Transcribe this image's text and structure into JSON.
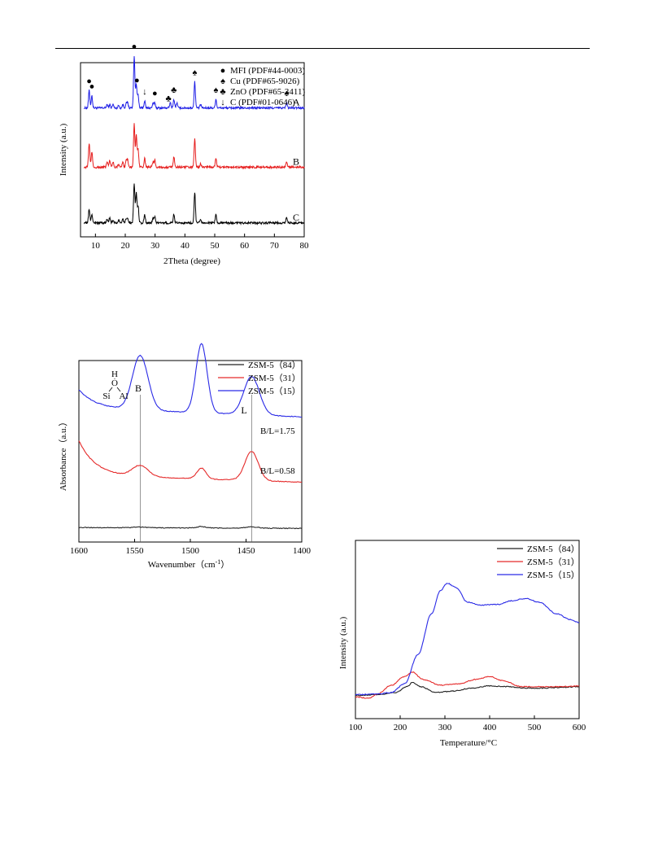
{
  "colors": {
    "A": "#1f1fe6",
    "B": "#e61e1e",
    "C": "#000000",
    "s84": "#222222",
    "s31": "#e52a2a",
    "s15": "#2a2ae6"
  },
  "chart_data": [
    {
      "type": "line",
      "title": "",
      "xlabel": "2Theta (degree)",
      "ylabel": "Intensity (a.u.)",
      "xlim": [
        5,
        80
      ],
      "xticks": [
        "10",
        "20",
        "30",
        "40",
        "50",
        "60",
        "70",
        "80"
      ],
      "legend": [
        {
          "symbol": "●",
          "label": "MFI (PDF#44-0003)"
        },
        {
          "symbol": "♠",
          "label": "Cu   (PDF#65-9026)"
        },
        {
          "symbol": "♣",
          "label": "ZnO (PDF#65-3411)"
        },
        {
          "symbol": "↓",
          "label": "C   (PDF#01-0646)"
        }
      ],
      "series": [
        {
          "name": "A",
          "baseline": 0.74,
          "peaks": [
            [
              7.9,
              0.1
            ],
            [
              8.8,
              0.07
            ],
            [
              13.9,
              0.02
            ],
            [
              14.8,
              0.02
            ],
            [
              15.9,
              0.02
            ],
            [
              17.8,
              0.015
            ],
            [
              19.2,
              0.02
            ],
            [
              20.3,
              0.025
            ],
            [
              20.8,
              0.03
            ],
            [
              23.0,
              0.3
            ],
            [
              23.7,
              0.14
            ],
            [
              24.3,
              0.07
            ],
            [
              26.5,
              0.04
            ],
            [
              29.3,
              0.025
            ],
            [
              29.9,
              0.03
            ],
            [
              35.1,
              0.03
            ],
            [
              36.3,
              0.05
            ],
            [
              37.3,
              0.03
            ],
            [
              43.3,
              0.15
            ],
            [
              45.3,
              0.02
            ],
            [
              50.4,
              0.05
            ],
            [
              74.1,
              0.03
            ]
          ]
        },
        {
          "name": "B",
          "baseline": 0.4,
          "peaks": [
            [
              7.9,
              0.14
            ],
            [
              8.8,
              0.09
            ],
            [
              13.9,
              0.03
            ],
            [
              14.8,
              0.04
            ],
            [
              15.9,
              0.03
            ],
            [
              17.8,
              0.02
            ],
            [
              19.2,
              0.03
            ],
            [
              20.3,
              0.035
            ],
            [
              20.8,
              0.04
            ],
            [
              23.0,
              0.25
            ],
            [
              23.7,
              0.18
            ],
            [
              24.3,
              0.1
            ],
            [
              26.5,
              0.05
            ],
            [
              29.3,
              0.03
            ],
            [
              29.9,
              0.04
            ],
            [
              36.3,
              0.06
            ],
            [
              43.3,
              0.16
            ],
            [
              45.3,
              0.02
            ],
            [
              50.4,
              0.05
            ],
            [
              74.1,
              0.03
            ]
          ]
        },
        {
          "name": "C",
          "baseline": 0.08,
          "peaks": [
            [
              7.9,
              0.08
            ],
            [
              8.8,
              0.05
            ],
            [
              13.9,
              0.02
            ],
            [
              14.8,
              0.03
            ],
            [
              15.9,
              0.02
            ],
            [
              17.8,
              0.015
            ],
            [
              19.2,
              0.02
            ],
            [
              20.3,
              0.025
            ],
            [
              20.8,
              0.03
            ],
            [
              23.0,
              0.23
            ],
            [
              23.7,
              0.17
            ],
            [
              24.3,
              0.1
            ],
            [
              26.5,
              0.05
            ],
            [
              29.3,
              0.03
            ],
            [
              29.9,
              0.035
            ],
            [
              36.3,
              0.05
            ],
            [
              43.3,
              0.18
            ],
            [
              45.3,
              0.02
            ],
            [
              50.4,
              0.05
            ],
            [
              74.1,
              0.035
            ]
          ]
        }
      ],
      "markers": [
        {
          "symbol": "●",
          "x": 7.9
        },
        {
          "symbol": "●",
          "x": 8.8
        },
        {
          "symbol": "●",
          "x": 23.0
        },
        {
          "symbol": "●",
          "x": 23.9
        },
        {
          "symbol": "↓",
          "x": 26.5
        },
        {
          "symbol": "●",
          "x": 29.9
        },
        {
          "symbol": "♣",
          "x": 34.5
        },
        {
          "symbol": "♣",
          "x": 36.3
        },
        {
          "symbol": "♠",
          "x": 43.3
        },
        {
          "symbol": "♠",
          "x": 50.4
        },
        {
          "symbol": "♠",
          "x": 74.1
        }
      ],
      "series_labels": [
        "A",
        "B",
        "C"
      ]
    },
    {
      "type": "line",
      "title": "",
      "xlabel": "Wavenumber（cm",
      "xlabel_sup": "-1",
      "xlabel_end": "）",
      "ylabel": "Absorbance（a.u.）",
      "xlim": [
        1600,
        1400
      ],
      "xticks": [
        "1600",
        "1550",
        "1500",
        "1450",
        "1400"
      ],
      "legend": [
        {
          "label": "ZSM-5（84）",
          "key": "s84"
        },
        {
          "label": "ZSM-5（31）",
          "key": "s31"
        },
        {
          "label": "ZSM-5（15）",
          "key": "s15"
        }
      ],
      "series": [
        {
          "name": "ZSM-5（84）",
          "baseline": 0.08,
          "slope": 0.005,
          "peaks": [
            [
              1545,
              0.004,
              6
            ],
            [
              1490,
              0.008,
              4
            ],
            [
              1445,
              0.007,
              6
            ]
          ]
        },
        {
          "name": "ZSM-5（31）",
          "baseline": 0.37,
          "slope": 0.04,
          "start": 0.56,
          "peaks": [
            [
              1545,
              0.06,
              7
            ],
            [
              1490,
              0.06,
              4
            ],
            [
              1445,
              0.16,
              6
            ]
          ]
        },
        {
          "name": "ZSM-5（15）",
          "baseline": 0.74,
          "slope": 0.05,
          "start": 0.84,
          "peaks": [
            [
              1545,
              0.3,
              7
            ],
            [
              1490,
              0.38,
              5
            ],
            [
              1445,
              0.21,
              7
            ]
          ]
        }
      ],
      "annotations": {
        "B": "B",
        "L": "L",
        "bl1": "B/L=1.75",
        "bl2": "B/L=0.58",
        "struct_h": "H",
        "struct_o": "O",
        "struct_si": "Si",
        "struct_al": "Al"
      },
      "vlines": [
        1545,
        1445
      ]
    },
    {
      "type": "line",
      "title": "",
      "xlabel": "Temperature/°C",
      "ylabel": "Intensity (a.u.)",
      "xlim": [
        100,
        600
      ],
      "xticks": [
        "100",
        "200",
        "300",
        "400",
        "500",
        "600"
      ],
      "legend": [
        {
          "label": "ZSM-5（84）",
          "key": "s84"
        },
        {
          "label": "ZSM-5（31）",
          "key": "s31"
        },
        {
          "label": "ZSM-5（15）",
          "key": "s15"
        }
      ],
      "series": [
        {
          "name": "ZSM-5（84）",
          "points": [
            [
              100,
              0.02
            ],
            [
              150,
              0.025
            ],
            [
              190,
              0.04
            ],
            [
              215,
              0.08
            ],
            [
              228,
              0.11
            ],
            [
              245,
              0.08
            ],
            [
              280,
              0.04
            ],
            [
              320,
              0.05
            ],
            [
              360,
              0.07
            ],
            [
              400,
              0.085
            ],
            [
              440,
              0.08
            ],
            [
              480,
              0.07
            ],
            [
              520,
              0.07
            ],
            [
              560,
              0.075
            ],
            [
              600,
              0.08
            ]
          ]
        },
        {
          "name": "ZSM-5（31）",
          "points": [
            [
              100,
              0.01
            ],
            [
              130,
              0.0
            ],
            [
              150,
              0.03
            ],
            [
              180,
              0.09
            ],
            [
              210,
              0.15
            ],
            [
              228,
              0.18
            ],
            [
              250,
              0.13
            ],
            [
              290,
              0.09
            ],
            [
              330,
              0.1
            ],
            [
              370,
              0.13
            ],
            [
              400,
              0.15
            ],
            [
              430,
              0.12
            ],
            [
              470,
              0.08
            ],
            [
              520,
              0.08
            ],
            [
              560,
              0.08
            ],
            [
              600,
              0.085
            ]
          ]
        },
        {
          "name": "ZSM-5（15）",
          "points": [
            [
              100,
              0.025
            ],
            [
              150,
              0.03
            ],
            [
              180,
              0.04
            ],
            [
              210,
              0.1
            ],
            [
              240,
              0.3
            ],
            [
              270,
              0.58
            ],
            [
              290,
              0.74
            ],
            [
              305,
              0.79
            ],
            [
              325,
              0.76
            ],
            [
              350,
              0.66
            ],
            [
              380,
              0.64
            ],
            [
              420,
              0.645
            ],
            [
              450,
              0.67
            ],
            [
              480,
              0.685
            ],
            [
              510,
              0.66
            ],
            [
              550,
              0.58
            ],
            [
              580,
              0.54
            ],
            [
              600,
              0.52
            ]
          ]
        }
      ]
    }
  ]
}
